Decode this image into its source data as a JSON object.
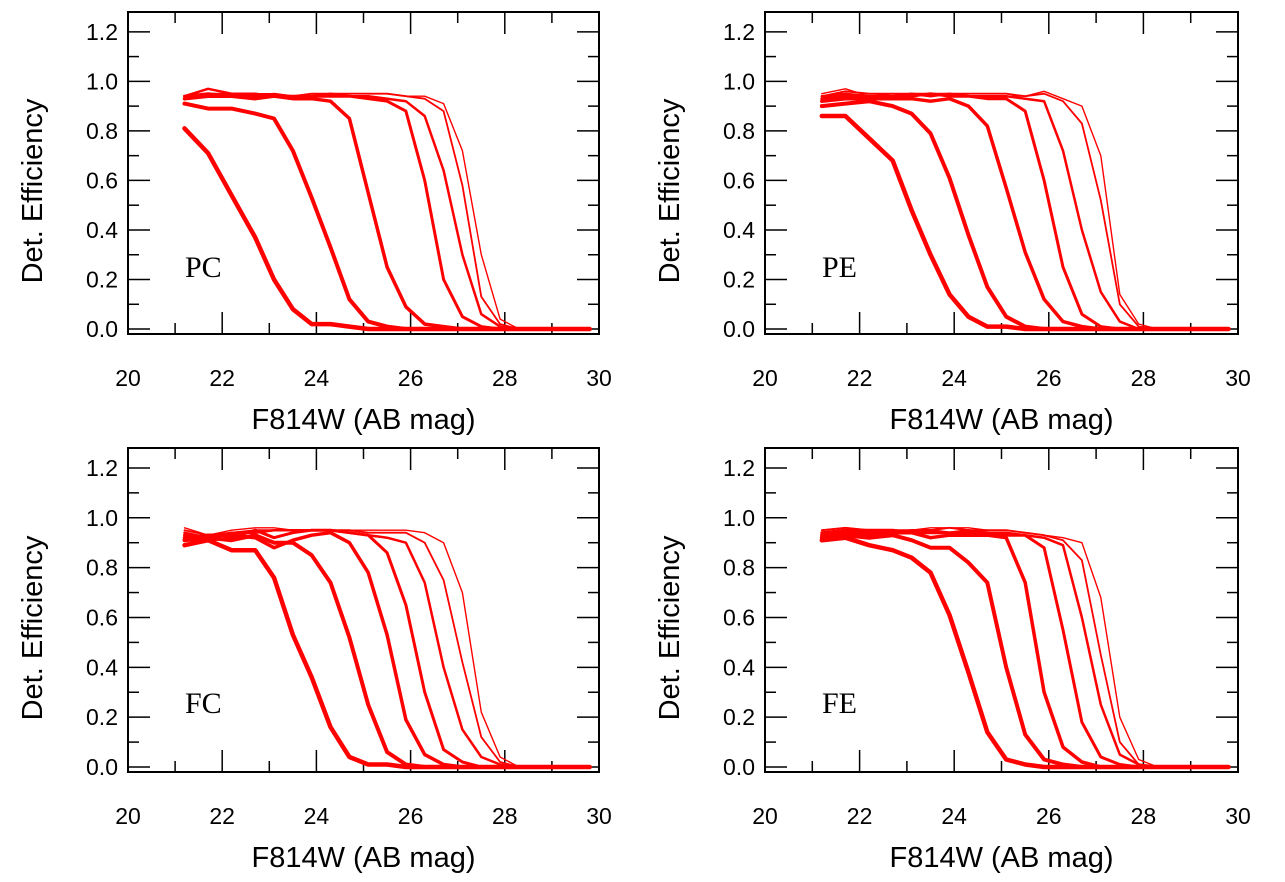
{
  "chart_data": [
    {
      "type": "line",
      "panel_label": "PC",
      "xlabel": "F814W (AB mag)",
      "ylabel": "Det. Efficiency",
      "xlim": [
        20,
        30
      ],
      "ylim": [
        -0.02,
        1.28
      ],
      "x_ticks": [
        "20",
        "22",
        "24",
        "26",
        "28",
        "30"
      ],
      "y_ticks": [
        "0.0",
        "0.2",
        "0.4",
        "0.6",
        "0.8",
        "1.0",
        "1.2"
      ],
      "color": "#ff0000",
      "x": [
        21.2,
        21.7,
        22.2,
        22.7,
        23.1,
        23.5,
        23.9,
        24.3,
        24.7,
        25.1,
        25.5,
        25.9,
        26.3,
        26.7,
        27.1,
        27.5,
        27.9,
        28.3,
        28.8,
        29.3,
        29.8
      ],
      "series": [
        {
          "stroke_width": 4.5,
          "values": [
            0.81,
            0.71,
            0.54,
            0.37,
            0.2,
            0.08,
            0.02,
            0.02,
            0.01,
            0.0,
            0.0,
            0.0,
            0.0,
            0.0,
            0.0,
            0.0,
            0.0,
            0.0,
            0.0,
            0.0,
            0.0
          ]
        },
        {
          "stroke_width": 4.0,
          "values": [
            0.91,
            0.89,
            0.89,
            0.87,
            0.85,
            0.72,
            0.53,
            0.33,
            0.12,
            0.03,
            0.01,
            0.0,
            0.0,
            0.0,
            0.0,
            0.0,
            0.0,
            0.0,
            0.0,
            0.0,
            0.0
          ]
        },
        {
          "stroke_width": 3.5,
          "values": [
            0.93,
            0.94,
            0.94,
            0.93,
            0.94,
            0.93,
            0.93,
            0.92,
            0.85,
            0.55,
            0.25,
            0.09,
            0.02,
            0.01,
            0.0,
            0.0,
            0.0,
            0.0,
            0.0,
            0.0,
            0.0
          ]
        },
        {
          "stroke_width": 3.0,
          "values": [
            0.94,
            0.95,
            0.94,
            0.94,
            0.94,
            0.94,
            0.94,
            0.94,
            0.94,
            0.93,
            0.92,
            0.88,
            0.6,
            0.2,
            0.05,
            0.01,
            0.0,
            0.0,
            0.0,
            0.0,
            0.0
          ]
        },
        {
          "stroke_width": 2.5,
          "values": [
            0.94,
            0.97,
            0.95,
            0.95,
            0.94,
            0.94,
            0.94,
            0.95,
            0.94,
            0.94,
            0.93,
            0.92,
            0.86,
            0.64,
            0.3,
            0.06,
            0.01,
            0.0,
            0.0,
            0.0,
            0.0
          ]
        },
        {
          "stroke_width": 1.8,
          "values": [
            0.94,
            0.95,
            0.95,
            0.94,
            0.95,
            0.94,
            0.95,
            0.95,
            0.95,
            0.95,
            0.95,
            0.94,
            0.93,
            0.88,
            0.58,
            0.13,
            0.02,
            0.0,
            0.0,
            0.0,
            0.0
          ]
        },
        {
          "stroke_width": 1.4,
          "values": [
            0.94,
            0.95,
            0.95,
            0.95,
            0.95,
            0.94,
            0.95,
            0.95,
            0.95,
            0.95,
            0.95,
            0.94,
            0.94,
            0.91,
            0.72,
            0.3,
            0.04,
            0.0,
            0.0,
            0.0,
            0.0
          ]
        }
      ]
    },
    {
      "type": "line",
      "panel_label": "PE",
      "xlabel": "F814W (AB mag)",
      "ylabel": "Det. Efficiency",
      "xlim": [
        20,
        30
      ],
      "ylim": [
        -0.02,
        1.28
      ],
      "x_ticks": [
        "20",
        "22",
        "24",
        "26",
        "28",
        "30"
      ],
      "y_ticks": [
        "0.0",
        "0.2",
        "0.4",
        "0.6",
        "0.8",
        "1.0",
        "1.2"
      ],
      "color": "#ff0000",
      "x": [
        21.2,
        21.7,
        22.2,
        22.7,
        23.1,
        23.5,
        23.9,
        24.3,
        24.7,
        25.1,
        25.5,
        25.9,
        26.3,
        26.7,
        27.1,
        27.5,
        27.9,
        28.3,
        28.8,
        29.3,
        29.8
      ],
      "series": [
        {
          "stroke_width": 4.5,
          "values": [
            0.86,
            0.86,
            0.77,
            0.68,
            0.48,
            0.3,
            0.14,
            0.05,
            0.01,
            0.01,
            0.0,
            0.0,
            0.0,
            0.0,
            0.0,
            0.0,
            0.0,
            0.0,
            0.0,
            0.0,
            0.0
          ]
        },
        {
          "stroke_width": 4.0,
          "values": [
            0.9,
            0.91,
            0.92,
            0.9,
            0.87,
            0.79,
            0.61,
            0.38,
            0.17,
            0.05,
            0.01,
            0.0,
            0.0,
            0.0,
            0.0,
            0.0,
            0.0,
            0.0,
            0.0,
            0.0,
            0.0
          ]
        },
        {
          "stroke_width": 3.5,
          "values": [
            0.92,
            0.93,
            0.93,
            0.93,
            0.93,
            0.92,
            0.93,
            0.9,
            0.82,
            0.57,
            0.31,
            0.12,
            0.03,
            0.01,
            0.0,
            0.0,
            0.0,
            0.0,
            0.0,
            0.0,
            0.0
          ]
        },
        {
          "stroke_width": 3.0,
          "values": [
            0.93,
            0.94,
            0.94,
            0.94,
            0.94,
            0.95,
            0.94,
            0.94,
            0.93,
            0.93,
            0.88,
            0.6,
            0.25,
            0.06,
            0.01,
            0.0,
            0.0,
            0.0,
            0.0,
            0.0,
            0.0
          ]
        },
        {
          "stroke_width": 2.5,
          "values": [
            0.94,
            0.95,
            0.94,
            0.94,
            0.95,
            0.94,
            0.95,
            0.94,
            0.94,
            0.94,
            0.93,
            0.92,
            0.72,
            0.4,
            0.15,
            0.03,
            0.0,
            0.0,
            0.0,
            0.0,
            0.0
          ]
        },
        {
          "stroke_width": 1.8,
          "values": [
            0.94,
            0.96,
            0.95,
            0.95,
            0.95,
            0.95,
            0.95,
            0.95,
            0.95,
            0.95,
            0.94,
            0.95,
            0.92,
            0.83,
            0.52,
            0.1,
            0.01,
            0.0,
            0.0,
            0.0,
            0.0
          ]
        },
        {
          "stroke_width": 1.4,
          "values": [
            0.95,
            0.97,
            0.94,
            0.95,
            0.95,
            0.95,
            0.95,
            0.94,
            0.94,
            0.94,
            0.94,
            0.96,
            0.93,
            0.9,
            0.7,
            0.14,
            0.02,
            0.0,
            0.0,
            0.0,
            0.0
          ]
        }
      ]
    },
    {
      "type": "line",
      "panel_label": "FC",
      "xlabel": "F814W (AB mag)",
      "ylabel": "Det. Efficiency",
      "xlim": [
        20,
        30
      ],
      "ylim": [
        -0.02,
        1.28
      ],
      "x_ticks": [
        "20",
        "22",
        "24",
        "26",
        "28",
        "30"
      ],
      "y_ticks": [
        "0.0",
        "0.2",
        "0.4",
        "0.6",
        "0.8",
        "1.0",
        "1.2"
      ],
      "color": "#ff0000",
      "x": [
        21.2,
        21.7,
        22.2,
        22.7,
        23.1,
        23.5,
        23.9,
        24.3,
        24.7,
        25.1,
        25.5,
        25.9,
        26.3,
        26.7,
        27.1,
        27.5,
        27.9,
        28.3,
        28.8,
        29.3,
        29.8
      ],
      "series": [
        {
          "stroke_width": 4.5,
          "values": [
            0.89,
            0.91,
            0.87,
            0.87,
            0.76,
            0.53,
            0.36,
            0.16,
            0.04,
            0.01,
            0.01,
            0.0,
            0.0,
            0.0,
            0.0,
            0.0,
            0.0,
            0.0,
            0.0,
            0.0,
            0.0
          ]
        },
        {
          "stroke_width": 4.0,
          "values": [
            0.91,
            0.92,
            0.91,
            0.93,
            0.9,
            0.9,
            0.85,
            0.74,
            0.52,
            0.25,
            0.06,
            0.01,
            0.0,
            0.0,
            0.0,
            0.0,
            0.0,
            0.0,
            0.0,
            0.0,
            0.0
          ]
        },
        {
          "stroke_width": 3.5,
          "values": [
            0.92,
            0.93,
            0.93,
            0.92,
            0.88,
            0.91,
            0.93,
            0.94,
            0.9,
            0.78,
            0.53,
            0.19,
            0.05,
            0.01,
            0.0,
            0.0,
            0.0,
            0.0,
            0.0,
            0.0,
            0.0
          ]
        },
        {
          "stroke_width": 3.0,
          "values": [
            0.93,
            0.91,
            0.92,
            0.95,
            0.92,
            0.94,
            0.95,
            0.95,
            0.94,
            0.93,
            0.86,
            0.65,
            0.3,
            0.07,
            0.02,
            0.0,
            0.0,
            0.0,
            0.0,
            0.0,
            0.0
          ]
        },
        {
          "stroke_width": 2.5,
          "values": [
            0.94,
            0.92,
            0.94,
            0.94,
            0.95,
            0.95,
            0.95,
            0.95,
            0.94,
            0.93,
            0.92,
            0.9,
            0.74,
            0.4,
            0.15,
            0.04,
            0.01,
            0.0,
            0.0,
            0.0,
            0.0
          ]
        },
        {
          "stroke_width": 1.8,
          "values": [
            0.95,
            0.93,
            0.94,
            0.95,
            0.95,
            0.95,
            0.95,
            0.95,
            0.95,
            0.94,
            0.94,
            0.94,
            0.9,
            0.75,
            0.42,
            0.12,
            0.02,
            0.0,
            0.0,
            0.0,
            0.0
          ]
        },
        {
          "stroke_width": 1.4,
          "values": [
            0.96,
            0.93,
            0.95,
            0.96,
            0.96,
            0.95,
            0.95,
            0.95,
            0.95,
            0.95,
            0.95,
            0.95,
            0.94,
            0.9,
            0.7,
            0.22,
            0.04,
            0.0,
            0.0,
            0.0,
            0.0
          ]
        }
      ]
    },
    {
      "type": "line",
      "panel_label": "FE",
      "xlabel": "F814W (AB mag)",
      "ylabel": "Det. Efficiency",
      "xlim": [
        20,
        30
      ],
      "ylim": [
        -0.02,
        1.28
      ],
      "x_ticks": [
        "20",
        "22",
        "24",
        "26",
        "28",
        "30"
      ],
      "y_ticks": [
        "0.0",
        "0.2",
        "0.4",
        "0.6",
        "0.8",
        "1.0",
        "1.2"
      ],
      "color": "#ff0000",
      "x": [
        21.2,
        21.7,
        22.2,
        22.7,
        23.1,
        23.5,
        23.9,
        24.3,
        24.7,
        25.1,
        25.5,
        25.9,
        26.3,
        26.7,
        27.1,
        27.5,
        27.9,
        28.3,
        28.8,
        29.3,
        29.8
      ],
      "series": [
        {
          "stroke_width": 4.5,
          "values": [
            0.91,
            0.92,
            0.89,
            0.87,
            0.84,
            0.78,
            0.61,
            0.38,
            0.14,
            0.03,
            0.01,
            0.0,
            0.0,
            0.0,
            0.0,
            0.0,
            0.0,
            0.0,
            0.0,
            0.0,
            0.0
          ]
        },
        {
          "stroke_width": 4.0,
          "values": [
            0.92,
            0.93,
            0.92,
            0.93,
            0.91,
            0.88,
            0.88,
            0.82,
            0.74,
            0.4,
            0.13,
            0.03,
            0.01,
            0.0,
            0.0,
            0.0,
            0.0,
            0.0,
            0.0,
            0.0,
            0.0
          ]
        },
        {
          "stroke_width": 3.5,
          "values": [
            0.93,
            0.94,
            0.93,
            0.94,
            0.94,
            0.92,
            0.93,
            0.93,
            0.93,
            0.92,
            0.74,
            0.3,
            0.08,
            0.02,
            0.0,
            0.0,
            0.0,
            0.0,
            0.0,
            0.0,
            0.0
          ]
        },
        {
          "stroke_width": 3.0,
          "values": [
            0.94,
            0.95,
            0.95,
            0.95,
            0.94,
            0.94,
            0.94,
            0.94,
            0.94,
            0.93,
            0.93,
            0.88,
            0.55,
            0.18,
            0.04,
            0.01,
            0.0,
            0.0,
            0.0,
            0.0,
            0.0
          ]
        },
        {
          "stroke_width": 2.5,
          "values": [
            0.94,
            0.95,
            0.94,
            0.94,
            0.95,
            0.95,
            0.94,
            0.95,
            0.94,
            0.94,
            0.93,
            0.92,
            0.89,
            0.6,
            0.25,
            0.05,
            0.01,
            0.0,
            0.0,
            0.0,
            0.0
          ]
        },
        {
          "stroke_width": 1.8,
          "values": [
            0.95,
            0.96,
            0.95,
            0.95,
            0.95,
            0.95,
            0.96,
            0.95,
            0.95,
            0.95,
            0.94,
            0.93,
            0.91,
            0.83,
            0.45,
            0.1,
            0.01,
            0.0,
            0.0,
            0.0,
            0.0
          ]
        },
        {
          "stroke_width": 1.4,
          "values": [
            0.95,
            0.96,
            0.95,
            0.95,
            0.95,
            0.96,
            0.96,
            0.96,
            0.95,
            0.95,
            0.94,
            0.93,
            0.92,
            0.9,
            0.68,
            0.2,
            0.03,
            0.0,
            0.0,
            0.0,
            0.0
          ]
        }
      ]
    }
  ]
}
